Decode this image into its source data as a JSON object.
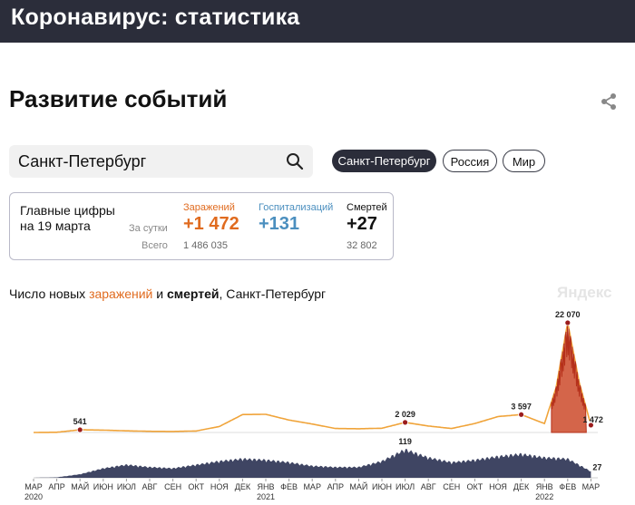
{
  "header": {
    "title": "Коронавирус: статистика"
  },
  "section": {
    "title": "Развитие событий"
  },
  "search": {
    "value": "Санкт-Петербург"
  },
  "regions": [
    {
      "label": "Санкт-Петербург",
      "active": true
    },
    {
      "label": "Россия",
      "active": false
    },
    {
      "label": "Мир",
      "active": false
    }
  ],
  "summary": {
    "title_line1": "Главные цифры",
    "title_line2": "на 19 марта",
    "per_day_label": "За сутки",
    "total_label": "Всего",
    "infections": {
      "label": "Заражений",
      "today": "+1 472",
      "total": "1 486 035",
      "color": "#e06b1f"
    },
    "hospitalizations": {
      "label": "Госпитализаций",
      "today": "+131",
      "color": "#4b8fbf"
    },
    "deaths": {
      "label": "Смертей",
      "today": "+27",
      "total": "32 802",
      "color": "#111111"
    }
  },
  "chart": {
    "title_prefix": "Число новых ",
    "title_infections": "заражений",
    "title_and": " и ",
    "title_deaths": "смертей",
    "title_suffix": ", Санкт-Петербург",
    "watermark": "Яндекс"
  },
  "chart_data": {
    "type": "area",
    "title": "Число новых заражений и смертей, Санкт-Петербург",
    "months": [
      "МАР",
      "АПР",
      "МАЙ",
      "ИЮН",
      "ИЮЛ",
      "АВГ",
      "СЕН",
      "ОКТ",
      "НОЯ",
      "ДЕК",
      "ЯНВ",
      "ФЕВ",
      "МАР",
      "АПР",
      "МАЙ",
      "ИЮН",
      "ИЮЛ",
      "АВГ",
      "СЕН",
      "ОКТ",
      "НОЯ",
      "ДЕК",
      "ЯНВ",
      "ФЕВ",
      "МАР"
    ],
    "years": [
      {
        "label": "2020",
        "month_index": 0
      },
      {
        "label": "2021",
        "month_index": 10
      },
      {
        "label": "2022",
        "month_index": 22
      }
    ],
    "series": [
      {
        "name": "заражений",
        "color": "#f0a43a",
        "peak_color": "#b5301a",
        "points": [
          [
            0,
            0
          ],
          [
            1,
            40
          ],
          [
            2,
            541
          ],
          [
            3,
            470
          ],
          [
            4,
            330
          ],
          [
            5,
            230
          ],
          [
            6,
            200
          ],
          [
            7,
            300
          ],
          [
            8,
            1200
          ],
          [
            9,
            3600
          ],
          [
            10,
            3650
          ],
          [
            11,
            2500
          ],
          [
            12,
            1700
          ],
          [
            13,
            800
          ],
          [
            14,
            750
          ],
          [
            15,
            850
          ],
          [
            16,
            2029
          ],
          [
            17,
            1300
          ],
          [
            18,
            800
          ],
          [
            19,
            1800
          ],
          [
            20,
            3200
          ],
          [
            21,
            3597
          ],
          [
            22,
            1800
          ],
          [
            22.5,
            9000
          ],
          [
            23,
            22070
          ],
          [
            23.5,
            10000
          ],
          [
            24,
            1472
          ]
        ],
        "annotations": [
          {
            "month_index": 2,
            "value": 541,
            "label": "541"
          },
          {
            "month_index": 16,
            "value": 2029,
            "label": "2 029"
          },
          {
            "month_index": 21,
            "value": 3597,
            "label": "3 597"
          },
          {
            "month_index": 23,
            "value": 22070,
            "label": "22 070"
          },
          {
            "month_index": 24,
            "value": 1472,
            "label": "1 472"
          }
        ]
      },
      {
        "name": "смертей",
        "color": "#3f4563",
        "points": [
          [
            0,
            0
          ],
          [
            1,
            2
          ],
          [
            2,
            15
          ],
          [
            3,
            40
          ],
          [
            4,
            55
          ],
          [
            5,
            45
          ],
          [
            6,
            40
          ],
          [
            7,
            55
          ],
          [
            8,
            70
          ],
          [
            9,
            80
          ],
          [
            10,
            75
          ],
          [
            11,
            65
          ],
          [
            12,
            50
          ],
          [
            13,
            45
          ],
          [
            14,
            45
          ],
          [
            15,
            70
          ],
          [
            16,
            119
          ],
          [
            17,
            85
          ],
          [
            18,
            65
          ],
          [
            19,
            75
          ],
          [
            20,
            90
          ],
          [
            21,
            100
          ],
          [
            22,
            85
          ],
          [
            23,
            80
          ],
          [
            24,
            27
          ]
        ],
        "annotations": [
          {
            "month_index": 16,
            "value": 119,
            "label": "119"
          },
          {
            "month_index": 24,
            "value": 27,
            "label": "27"
          }
        ]
      }
    ]
  }
}
